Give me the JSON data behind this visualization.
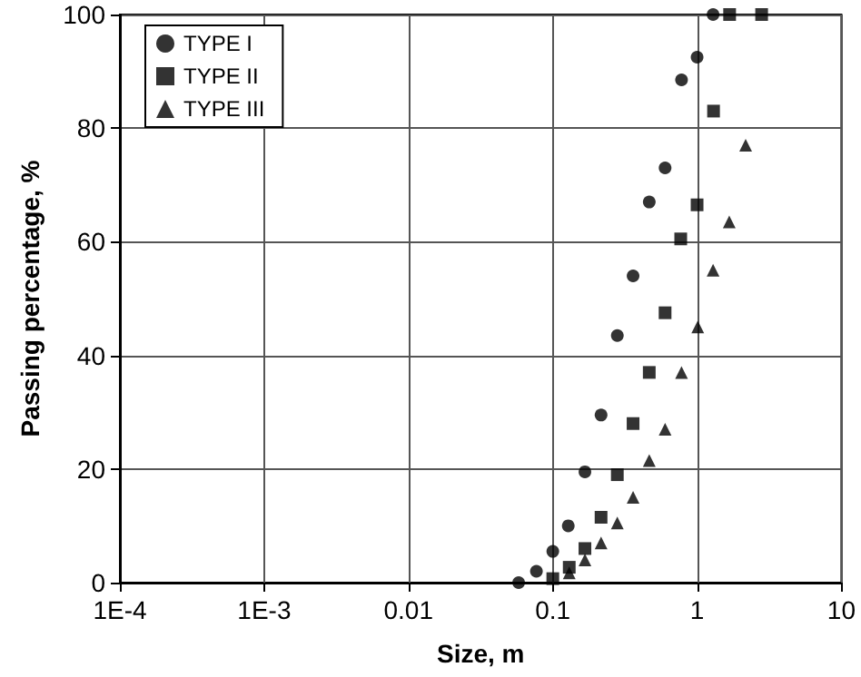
{
  "chart_data": {
    "type": "scatter",
    "xlabel": "Size, m",
    "ylabel": "Passing percentage, %",
    "log": "x",
    "grid": true,
    "legend": "top left",
    "xlim": [
      0.0001,
      10
    ],
    "xticks": [
      {
        "value": 0.0001,
        "label": "1E-4"
      },
      {
        "value": 0.001,
        "label": "1E-3"
      },
      0.01,
      0.1,
      1,
      10
    ],
    "ylim": [
      0,
      100
    ],
    "yticks": [
      0,
      20,
      40,
      60,
      80,
      100
    ],
    "series": [
      {
        "name": "TYPE I",
        "color": "#000000",
        "marker": "circle",
        "x": [
          0.058,
          0.077,
          0.1,
          0.128,
          0.167,
          0.216,
          0.28,
          0.36,
          0.466,
          0.6,
          0.78,
          1.0,
          1.29
        ],
        "values": [
          0,
          2,
          5.5,
          10,
          19.5,
          29.5,
          43.5,
          54,
          67,
          73,
          88.5,
          92.5,
          100
        ]
      },
      {
        "name": "TYPE II",
        "color": "#000000",
        "marker": "square",
        "x": [
          0.1,
          0.13,
          0.167,
          0.216,
          0.28,
          0.36,
          0.466,
          0.6,
          0.77,
          1.0,
          1.3,
          1.68,
          2.8
        ],
        "values": [
          0.7,
          2.7,
          6,
          11.5,
          19,
          28,
          37,
          47.5,
          60.5,
          66.5,
          83,
          100,
          100
        ]
      },
      {
        "name": "TYPE III",
        "color": "#000000",
        "marker": "triangle",
        "x": [
          0.13,
          0.167,
          0.216,
          0.28,
          0.36,
          0.466,
          0.6,
          0.78,
          1.01,
          1.29,
          1.67,
          2.17
        ],
        "values": [
          1.7,
          4,
          7,
          10.5,
          15,
          21.5,
          27,
          37,
          45,
          55,
          63.5,
          77
        ]
      }
    ]
  }
}
